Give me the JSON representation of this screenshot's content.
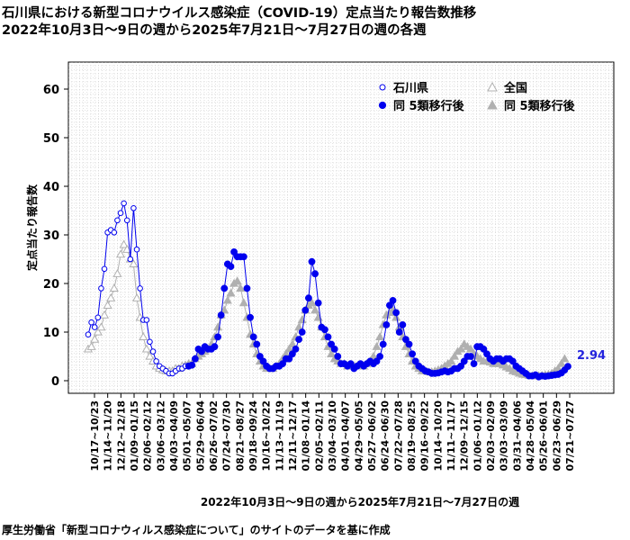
{
  "title_line1": "石川県における新型コロナウイルス感染症（COVID-19）定点当たり報告数推移",
  "title_line2": "2022年10月3日～9日の週から2025年7月21日～7月27日の週の各週",
  "source_note": "厚生労働省「新型コロナウィルス感染症について」のサイトのデータを基に作成",
  "colors": {
    "ishikawa": "#0000ee",
    "national": "#b0b0b0",
    "last_label": "#2222dd"
  },
  "chart_data": {
    "type": "line",
    "xlabel": "2022年10月3日～9日の週から2025年7月21日～7月27日の週",
    "ylabel": "定点当たり報告数",
    "ylim": [
      0,
      65
    ],
    "yticks": [
      0,
      10,
      20,
      30,
      40,
      50,
      60
    ],
    "grid": true,
    "legend_position": "top-right",
    "legend": {
      "ishikawa": "石川県",
      "national": "全国",
      "ishikawa_post": "同 5類移行後",
      "national_post": "同 5類移行後"
    },
    "x_tick_labels": [
      "10/17~10/23",
      "11/14~11/20",
      "12/12~12/18",
      "01/09~01/15",
      "02/06~02/12",
      "03/06~03/12",
      "04/03~04/09",
      "05/01~05/07",
      "05/29~06/04",
      "06/26~07/02",
      "07/24~07/30",
      "08/21~08/27",
      "09/18~09/24",
      "10/16~10/22",
      "11/13~11/19",
      "12/11~12/17",
      "01/08~01/14",
      "02/05~02/11",
      "03/04~03/10",
      "04/01~04/07",
      "04/29~05/05",
      "05/27~06/02",
      "06/24~06/30",
      "07/22~07/28",
      "08/19~08/25",
      "09/16~09/22",
      "10/14~10/20",
      "11/11~11/17",
      "12/09~12/15",
      "01/06~01/12",
      "02/03~02/09",
      "03/03~03/09",
      "03/31~04/06",
      "04/28~05/04",
      "05/26~06/01",
      "06/23~06/29",
      "07/21~07/27"
    ],
    "reclassification_week_index": 31,
    "ishikawa": [
      9.5,
      12,
      11,
      13,
      19,
      23,
      30.5,
      31,
      30.5,
      33,
      34.5,
      36.5,
      33,
      25,
      35.5,
      27,
      19,
      12.5,
      12.5,
      8,
      6,
      4,
      3,
      2.5,
      2,
      1.5,
      1.5,
      2,
      2.5,
      2.5,
      3,
      3,
      3.2,
      4.5,
      6.5,
      6,
      7,
      6.5,
      6.5,
      7,
      9,
      13.5,
      19,
      24,
      23.5,
      26.5,
      25.5,
      25.5,
      25.5,
      19,
      13,
      9,
      7.5,
      5,
      4,
      3,
      2.5,
      2.5,
      3,
      3,
      3.5,
      4.5,
      4.5,
      5.5,
      6.5,
      8.5,
      10,
      14.5,
      17,
      24.5,
      22,
      16,
      11,
      10.5,
      9,
      7.5,
      6.5,
      5,
      3.5,
      3.5,
      3,
      3.5,
      2.5,
      3,
      3.5,
      3,
      3.5,
      4,
      3.5,
      4,
      5,
      7.5,
      11.5,
      15.5,
      16.5,
      14,
      10,
      11.5,
      8.5,
      7.5,
      5.5,
      4,
      3,
      2.5,
      2,
      1.8,
      1.5,
      1.5,
      1.6,
      1.8,
      2,
      1.8,
      2,
      2.5,
      2.5,
      3,
      4,
      5,
      5,
      3.5,
      7,
      7,
      6.5,
      5.5,
      4.5,
      4,
      4.5,
      4.5,
      4,
      4.5,
      4.5,
      4,
      3,
      2.5,
      2,
      1.5,
      1,
      1,
      1.2,
      0.8,
      1,
      0.9,
      1,
      1.1,
      1.2,
      1.3,
      1.6,
      2.2,
      2.94
    ],
    "national": [
      6.5,
      7,
      8.5,
      10,
      11,
      13.5,
      15.5,
      17,
      19,
      22,
      26,
      28,
      27,
      25,
      24,
      17,
      13,
      9,
      6.5,
      5,
      4,
      3,
      2.5,
      2.2,
      2,
      2,
      2,
      2.5,
      2.5,
      3,
      3.2,
      3.5,
      3.5,
      4.5,
      5,
      5.5,
      6,
      6.5,
      7.5,
      9,
      11,
      13.5,
      14.5,
      16.5,
      18,
      20,
      20.5,
      19,
      16,
      13,
      9.5,
      7.5,
      5.5,
      4,
      3,
      2.5,
      2.5,
      2.5,
      3,
      3.5,
      4.5,
      5.5,
      6.5,
      7.5,
      9,
      11,
      12.5,
      14.5,
      15.5,
      16,
      14.5,
      13,
      11,
      9,
      7,
      5.5,
      4.5,
      4,
      3.5,
      3.5,
      3,
      3,
      3,
      3,
      3,
      3,
      3.5,
      4,
      5,
      7,
      9,
      11.5,
      13.5,
      14,
      14.5,
      13,
      11,
      9,
      7,
      5.5,
      4,
      3,
      2.5,
      2,
      2,
      1.8,
      1.8,
      2,
      2.2,
      2.5,
      3,
      3.5,
      4,
      5,
      6,
      6.5,
      7.5,
      7,
      6.5,
      5.5,
      5,
      4.5,
      4,
      4,
      3.8,
      3.5,
      3.5,
      3.5,
      3.2,
      2.8,
      2.5,
      2,
      1.8,
      1.5,
      1.3,
      1.2,
      1.1,
      1,
      1,
      1,
      1.1,
      1.2,
      1.3,
      1.5,
      2,
      2.5,
      3.5,
      4.5
    ],
    "last_value_label": "2.94"
  }
}
